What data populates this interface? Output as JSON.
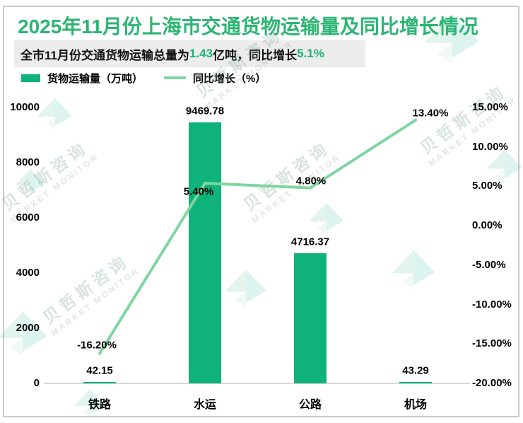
{
  "title": "2025年11月份上海市交通货物运输量及同比增长情况",
  "subtitle": {
    "part1": "全市11月份交通货物运输总量为",
    "value1": "1.43",
    "part2": "亿吨，同比增长",
    "value2": "5.1%"
  },
  "legend": {
    "bar_label": "货物运输量（万吨）",
    "line_label": "同比增长（%）"
  },
  "watermark": {
    "cn": "贝哲斯咨询",
    "en": "MARKET MONITOR"
  },
  "colors": {
    "bar": "#0fb27b",
    "line": "#7ed6a0",
    "title": "#2cb573",
    "accent": "#1db473",
    "axis_line": "#d9d9d9",
    "subtitle_bg": "#ececec",
    "frame_border": "#c9c9c9"
  },
  "chart_data": {
    "type": "bar",
    "combo": "bar+line dual axis",
    "categories": [
      "铁路",
      "水运",
      "公路",
      "机场"
    ],
    "series": [
      {
        "name": "货物运输量（万吨）",
        "type": "bar",
        "axis": "left",
        "values": [
          42.15,
          9469.78,
          4716.37,
          43.29
        ],
        "labels": [
          "42.15",
          "9469.78",
          "4716.37",
          "43.29"
        ]
      },
      {
        "name": "同比增长（%）",
        "type": "line",
        "axis": "right",
        "values": [
          -16.2,
          5.4,
          4.8,
          13.4
        ],
        "labels": [
          "-16.20%",
          "5.40%",
          "4.80%",
          "13.40%"
        ]
      }
    ],
    "left_axis": {
      "min": 0,
      "max": 10000,
      "ticks": [
        "10000",
        "8000",
        "6000",
        "4000",
        "2000",
        "0"
      ]
    },
    "right_axis": {
      "min": -20,
      "max": 15,
      "ticks": [
        "15.00%",
        "10.00%",
        "5.00%",
        "0.00%",
        "-5.00%",
        "-10.00%",
        "-15.00%",
        "-20.00%"
      ]
    },
    "grid": false,
    "legend_position": "top-left"
  }
}
